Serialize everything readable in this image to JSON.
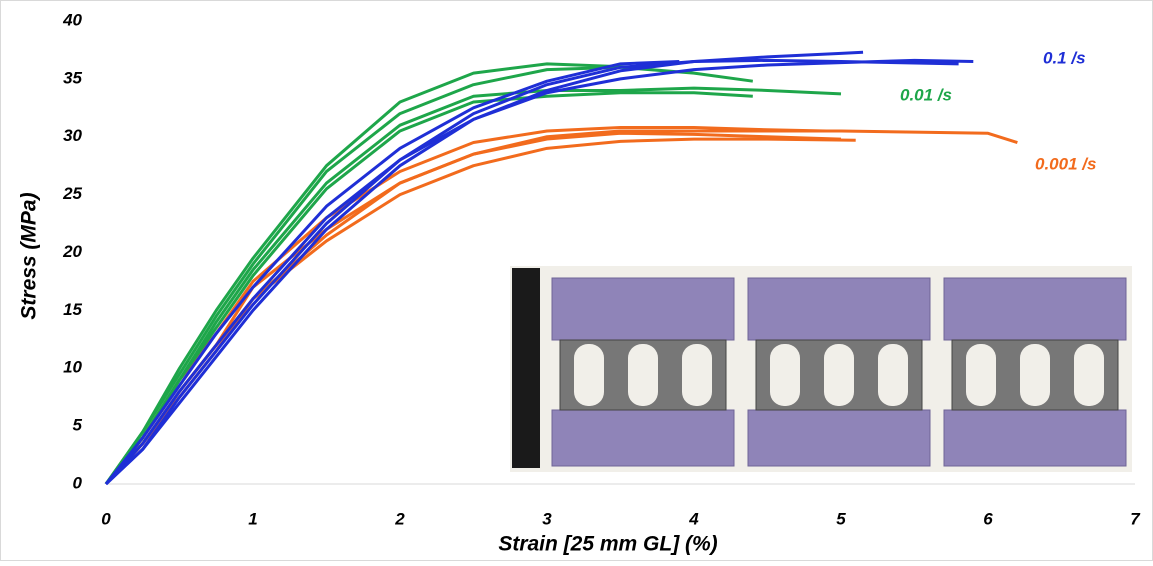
{
  "chart_data": {
    "type": "line",
    "xlabel": "Strain [25 mm GL] (%)",
    "ylabel": "Stress (MPa)",
    "xlim": [
      0,
      7
    ],
    "xticks": [
      0,
      1,
      2,
      3,
      4,
      5,
      6,
      7
    ],
    "ylim": [
      0,
      40
    ],
    "yticks": [
      0,
      5,
      10,
      15,
      20,
      25,
      30,
      35,
      40
    ],
    "grid": false,
    "series": [
      {
        "name": "0.001 /s",
        "color": "#f26b1d",
        "curves": [
          {
            "x": [
              0,
              0.25,
              0.5,
              0.75,
              1,
              1.5,
              2,
              2.5,
              3,
              3.5,
              4,
              4.5,
              5,
              5.5,
              6,
              6.2
            ],
            "values": [
              0,
              3.5,
              8,
              12,
              17,
              22,
              26,
              28.5,
              30,
              30.5,
              30.5,
              30.5,
              30.5,
              30.4,
              30.3,
              29.5
            ]
          },
          {
            "x": [
              0,
              0.25,
              0.5,
              0.75,
              1,
              1.5,
              2,
              2.5,
              3,
              3.5,
              4,
              4.5,
              5.1
            ],
            "values": [
              0,
              3.5,
              8,
              12,
              16,
              21,
              25,
              27.5,
              29,
              29.6,
              29.8,
              29.8,
              29.7
            ]
          },
          {
            "x": [
              0,
              0.25,
              0.5,
              0.75,
              1,
              1.5,
              2,
              2.5,
              3,
              3.5,
              4,
              4.5,
              4.9
            ],
            "values": [
              0,
              4,
              9,
              13,
              17.5,
              23,
              27,
              29.5,
              30.5,
              30.8,
              30.8,
              30.6,
              30.5
            ]
          },
          {
            "x": [
              0,
              0.25,
              0.5,
              0.75,
              1,
              1.5,
              2,
              2.5,
              3,
              3.5,
              4,
              4.5,
              5
            ],
            "values": [
              0,
              3.5,
              7.5,
              11.5,
              16,
              21.5,
              26,
              28.5,
              29.8,
              30.3,
              30.2,
              30,
              29.8
            ]
          }
        ]
      },
      {
        "name": "0.01 /s",
        "color": "#1ea64a",
        "curves": [
          {
            "x": [
              0,
              0.25,
              0.5,
              0.75,
              1,
              1.5,
              2,
              2.5,
              3,
              3.5,
              4,
              4.5,
              5
            ],
            "values": [
              0,
              4,
              9,
              14,
              18.5,
              26,
              31,
              33.5,
              34,
              34,
              34.2,
              34,
              33.7
            ]
          },
          {
            "x": [
              0,
              0.25,
              0.5,
              0.75,
              1,
              1.5,
              2,
              2.5,
              3,
              3.5,
              4,
              4.4
            ],
            "values": [
              0,
              4.5,
              9.5,
              14.5,
              19,
              27,
              32,
              34.5,
              35.8,
              36,
              35.5,
              34.8
            ]
          },
          {
            "x": [
              0,
              0.25,
              0.5,
              0.75,
              1,
              1.5,
              2,
              2.5,
              3,
              3.5,
              4,
              4.4
            ],
            "values": [
              0,
              4,
              9,
              13.5,
              18,
              25.5,
              30.5,
              33,
              33.5,
              33.8,
              33.8,
              33.5
            ]
          },
          {
            "x": [
              0,
              0.25,
              0.5,
              0.75,
              1,
              1.5,
              2,
              2.5,
              3,
              3.6
            ],
            "values": [
              0,
              4.5,
              10,
              15,
              19.5,
              27.5,
              33,
              35.5,
              36.3,
              36
            ]
          }
        ]
      },
      {
        "name": "0.1 /s",
        "color": "#1f2fd6",
        "curves": [
          {
            "x": [
              0,
              0.25,
              0.5,
              0.75,
              1,
              1.5,
              2,
              2.5,
              3,
              3.5,
              4,
              4.5,
              5,
              5.15
            ],
            "values": [
              0,
              3,
              7,
              11,
              15,
              22,
              27.5,
              31.5,
              34,
              35.7,
              36.5,
              36.9,
              37.2,
              37.3
            ]
          },
          {
            "x": [
              0,
              0.25,
              0.5,
              0.75,
              1,
              1.5,
              2,
              2.5,
              3,
              3.5,
              4,
              4.5,
              5,
              5.5,
              5.9
            ],
            "values": [
              0,
              3.5,
              8,
              12,
              16,
              23,
              28,
              31.5,
              33.8,
              35,
              35.8,
              36.2,
              36.4,
              36.6,
              36.5
            ]
          },
          {
            "x": [
              0,
              0.25,
              0.5,
              0.75,
              1,
              1.5,
              2,
              2.5,
              3,
              3.5,
              3.9
            ],
            "values": [
              0,
              4,
              8.5,
              13,
              17,
              24,
              29,
              32.5,
              34.8,
              36.3,
              36.5
            ]
          },
          {
            "x": [
              0,
              0.25,
              0.5,
              0.75,
              1,
              1.5,
              2,
              2.5,
              3,
              3.5,
              4,
              4.5,
              5,
              5.8
            ],
            "values": [
              0,
              3,
              7.5,
              11.5,
              15.5,
              22.5,
              28,
              32,
              34.5,
              36,
              36.5,
              36.6,
              36.5,
              36.3
            ]
          }
        ]
      }
    ]
  }
}
